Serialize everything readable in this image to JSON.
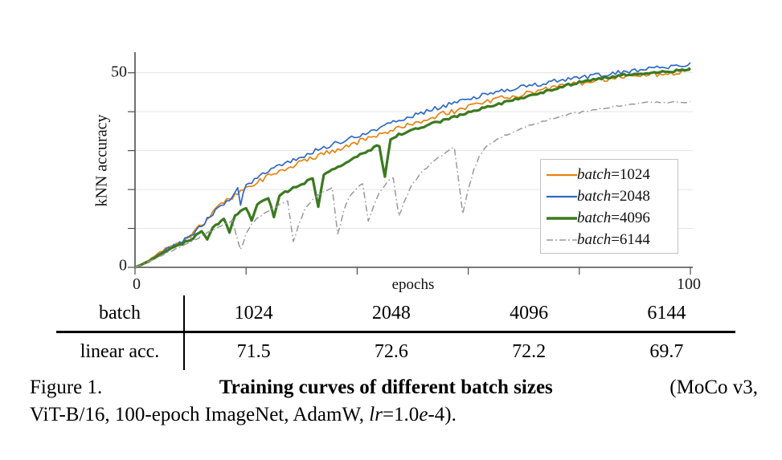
{
  "chart_data": {
    "type": "line",
    "title": "",
    "xlabel": "epochs",
    "ylabel": "kNN accuracy",
    "xlim": [
      0,
      100
    ],
    "ylim": [
      0,
      55.3
    ],
    "x_ticks": [
      0,
      20,
      40,
      60,
      80,
      100
    ],
    "y_ticks": [
      0,
      10,
      20,
      30,
      40,
      50
    ],
    "x_tick_labels": [
      {
        "v": 0,
        "t": "0"
      },
      {
        "v": 100,
        "t": "100"
      }
    ],
    "y_tick_labels": [
      {
        "v": 50,
        "t": "50"
      },
      {
        "v": 0,
        "t": "0"
      }
    ],
    "grid": "horizontal",
    "grid_color": "#e4e4e4",
    "axis_color": "#4d4d4d",
    "legend_position": "inside-lower-right",
    "series": [
      {
        "label": "batch=1024",
        "label_word": "batch",
        "label_value": "=1024",
        "color": "#E8820E",
        "style": "solid",
        "width": 1.7,
        "jitter": 0.7,
        "points": [
          [
            0,
            0
          ],
          [
            2,
            1.4
          ],
          [
            4,
            3.2
          ],
          [
            6,
            5
          ],
          [
            8,
            6.5
          ],
          [
            10,
            8.3
          ],
          [
            12,
            11
          ],
          [
            14,
            14
          ],
          [
            16,
            16.6
          ],
          [
            18,
            18.6
          ],
          [
            20,
            20.3
          ],
          [
            22,
            21.9
          ],
          [
            24,
            23.4
          ],
          [
            26,
            24.8
          ],
          [
            28,
            25.9
          ],
          [
            30,
            27
          ],
          [
            32,
            28.1
          ],
          [
            34,
            29.2
          ],
          [
            36,
            30.2
          ],
          [
            38,
            31.2
          ],
          [
            40,
            32.2
          ],
          [
            42,
            33.2
          ],
          [
            44,
            34.2
          ],
          [
            46,
            35.2
          ],
          [
            48,
            36.1
          ],
          [
            50,
            37
          ],
          [
            52,
            37.9
          ],
          [
            54,
            38.8
          ],
          [
            56,
            39.6
          ],
          [
            58,
            40.4
          ],
          [
            60,
            41.2
          ],
          [
            62,
            42
          ],
          [
            64,
            42.7
          ],
          [
            66,
            43.4
          ],
          [
            68,
            44
          ],
          [
            70,
            44.6
          ],
          [
            72,
            45.2
          ],
          [
            74,
            45.8
          ],
          [
            76,
            46.4
          ],
          [
            78,
            46.9
          ],
          [
            80,
            47.4
          ],
          [
            82,
            47.9
          ],
          [
            84,
            48.3
          ],
          [
            86,
            48.7
          ],
          [
            88,
            49
          ],
          [
            90,
            49.3
          ],
          [
            92,
            49.5
          ],
          [
            94,
            49.7
          ],
          [
            96,
            49.8
          ],
          [
            98,
            50
          ],
          [
            100,
            50.3
          ]
        ]
      },
      {
        "label": "batch=2048",
        "label_word": "batch",
        "label_value": "=2048",
        "color": "#2F6BC6",
        "style": "solid",
        "width": 1.7,
        "jitter": 0.55,
        "points": [
          [
            0,
            0
          ],
          [
            2,
            1.3
          ],
          [
            4,
            3
          ],
          [
            6,
            4.8
          ],
          [
            8,
            6.2
          ],
          [
            10,
            8
          ],
          [
            12,
            10.8
          ],
          [
            14,
            13.8
          ],
          [
            16,
            16.4
          ],
          [
            18,
            18.8
          ],
          [
            18.5,
            20
          ],
          [
            19,
            16.3
          ],
          [
            20,
            21
          ],
          [
            22,
            23
          ],
          [
            24,
            24.8
          ],
          [
            26,
            26.3
          ],
          [
            28,
            27.4
          ],
          [
            30,
            28.5
          ],
          [
            32,
            29.7
          ],
          [
            34,
            30.8
          ],
          [
            36,
            31.8
          ],
          [
            38,
            32.8
          ],
          [
            40,
            33.8
          ],
          [
            42,
            34.8
          ],
          [
            44,
            35.8
          ],
          [
            46,
            36.9
          ],
          [
            48,
            38
          ],
          [
            50,
            39
          ],
          [
            52,
            39.9
          ],
          [
            54,
            40.8
          ],
          [
            56,
            41.6
          ],
          [
            58,
            42.4
          ],
          [
            60,
            43.2
          ],
          [
            62,
            44
          ],
          [
            64,
            44.7
          ],
          [
            66,
            45.3
          ],
          [
            68,
            45.9
          ],
          [
            70,
            46.4
          ],
          [
            72,
            46.9
          ],
          [
            74,
            47.4
          ],
          [
            76,
            47.9
          ],
          [
            78,
            48.3
          ],
          [
            80,
            48.7
          ],
          [
            82,
            49.1
          ],
          [
            84,
            49.5
          ],
          [
            86,
            49.9
          ],
          [
            88,
            50.3
          ],
          [
            90,
            50.7
          ],
          [
            92,
            51
          ],
          [
            94,
            51.2
          ],
          [
            96,
            51.4
          ],
          [
            98,
            51.7
          ],
          [
            100,
            52.2
          ]
        ]
      },
      {
        "label": "batch=4096",
        "label_word": "batch",
        "label_value": "=4096",
        "color": "#3B7A20",
        "style": "solid",
        "width": 3.2,
        "jitter": 0.3,
        "points": [
          [
            0,
            0
          ],
          [
            2,
            1.2
          ],
          [
            4,
            2.8
          ],
          [
            6,
            4.4
          ],
          [
            8,
            5.8
          ],
          [
            10,
            7.2
          ],
          [
            11,
            8.2
          ],
          [
            12,
            9.3
          ],
          [
            13,
            7
          ],
          [
            14,
            10.4
          ],
          [
            15,
            11.4
          ],
          [
            16,
            12.4
          ],
          [
            17,
            9.2
          ],
          [
            18,
            13.3
          ],
          [
            19,
            14.2
          ],
          [
            20,
            15.2
          ],
          [
            21,
            11.8
          ],
          [
            22,
            16.2
          ],
          [
            23,
            17
          ],
          [
            24,
            17.8
          ],
          [
            25,
            13
          ],
          [
            26,
            18.6
          ],
          [
            27,
            19.3
          ],
          [
            28,
            20
          ],
          [
            29,
            20.7
          ],
          [
            30,
            21.4
          ],
          [
            31,
            22.1
          ],
          [
            32,
            22.8
          ],
          [
            33,
            15.5
          ],
          [
            34,
            23.8
          ],
          [
            35,
            24.6
          ],
          [
            36,
            25.5
          ],
          [
            38,
            27
          ],
          [
            40,
            28.5
          ],
          [
            42,
            30
          ],
          [
            44,
            31.4
          ],
          [
            45,
            23
          ],
          [
            46,
            33
          ],
          [
            48,
            34.4
          ],
          [
            50,
            35.3
          ],
          [
            52,
            36.2
          ],
          [
            54,
            37.1
          ],
          [
            56,
            38
          ],
          [
            58,
            38.9
          ],
          [
            60,
            39.8
          ],
          [
            62,
            40.6
          ],
          [
            64,
            41.4
          ],
          [
            66,
            42.2
          ],
          [
            68,
            43
          ],
          [
            70,
            43.7
          ],
          [
            72,
            44.5
          ],
          [
            74,
            45.3
          ],
          [
            76,
            46.1
          ],
          [
            78,
            46.9
          ],
          [
            80,
            47.5
          ],
          [
            82,
            48.1
          ],
          [
            84,
            48.6
          ],
          [
            86,
            49
          ],
          [
            88,
            49.4
          ],
          [
            90,
            49.7
          ],
          [
            92,
            50
          ],
          [
            94,
            50.2
          ],
          [
            96,
            50.4
          ],
          [
            98,
            50.6
          ],
          [
            100,
            50.9
          ]
        ]
      },
      {
        "label": "batch=6144",
        "label_word": "batch",
        "label_value": "=6144",
        "color": "#999999",
        "style": "dashdot",
        "width": 1.5,
        "jitter": 0.25,
        "points": [
          [
            0,
            0
          ],
          [
            2,
            1.1
          ],
          [
            4,
            2.5
          ],
          [
            6,
            3.9
          ],
          [
            8,
            5.2
          ],
          [
            10,
            6.5
          ],
          [
            12,
            8
          ],
          [
            14,
            9.6
          ],
          [
            16,
            11
          ],
          [
            17.5,
            12
          ],
          [
            19,
            4.5
          ],
          [
            20,
            8.5
          ],
          [
            21,
            11
          ],
          [
            22,
            12.5
          ],
          [
            24,
            14.5
          ],
          [
            26,
            16
          ],
          [
            27.5,
            17
          ],
          [
            28.5,
            6.5
          ],
          [
            29.5,
            11
          ],
          [
            30.5,
            14.5
          ],
          [
            32,
            17.5
          ],
          [
            34,
            19.5
          ],
          [
            35.5,
            20.5
          ],
          [
            36.5,
            8.5
          ],
          [
            37.5,
            14
          ],
          [
            38.5,
            18
          ],
          [
            40,
            20.5
          ],
          [
            41,
            21.5
          ],
          [
            42,
            12
          ],
          [
            43,
            16
          ],
          [
            44,
            19
          ],
          [
            45.5,
            22
          ],
          [
            46.5,
            23
          ],
          [
            47.5,
            13
          ],
          [
            48.5,
            17
          ],
          [
            50,
            21.5
          ],
          [
            52,
            25
          ],
          [
            54,
            27.5
          ],
          [
            56,
            29.5
          ],
          [
            57.5,
            30.8
          ],
          [
            59,
            14
          ],
          [
            60,
            20
          ],
          [
            61,
            25
          ],
          [
            62,
            28.5
          ],
          [
            63,
            30.5
          ],
          [
            64,
            31.8
          ],
          [
            66,
            33.5
          ],
          [
            68,
            34.8
          ],
          [
            70,
            36
          ],
          [
            72,
            37
          ],
          [
            74,
            37.8
          ],
          [
            76,
            38.6
          ],
          [
            78,
            39.2
          ],
          [
            80,
            39.8
          ],
          [
            82,
            40.3
          ],
          [
            84,
            40.8
          ],
          [
            86,
            41.3
          ],
          [
            88,
            41.7
          ],
          [
            90,
            42
          ],
          [
            92,
            42.3
          ],
          [
            94,
            42.4
          ],
          [
            96,
            42.3
          ],
          [
            98,
            42.5
          ],
          [
            100,
            42.4
          ]
        ]
      }
    ]
  },
  "table": {
    "header_label": "batch",
    "row_label": "linear acc.",
    "columns": [
      "1024",
      "2048",
      "4096",
      "6144"
    ],
    "values": [
      "71.5",
      "72.6",
      "72.2",
      "69.7"
    ]
  },
  "caption": {
    "line1": [
      {
        "text": "Figure 1.",
        "bold": false,
        "italic": false
      },
      {
        "text": "Training curves of different batch sizes",
        "bold": true,
        "italic": false
      },
      {
        "text": "(MoCo v3,",
        "bold": false,
        "italic": false
      }
    ],
    "line2": [
      {
        "text": "ViT-B/16, 100-epoch ImageNet, AdamW, ",
        "bold": false,
        "italic": false
      },
      {
        "text": "lr",
        "bold": false,
        "italic": true
      },
      {
        "text": "=1.0",
        "bold": false,
        "italic": false
      },
      {
        "text": "e",
        "bold": false,
        "italic": true
      },
      {
        "text": "-4).",
        "bold": false,
        "italic": false
      }
    ]
  }
}
